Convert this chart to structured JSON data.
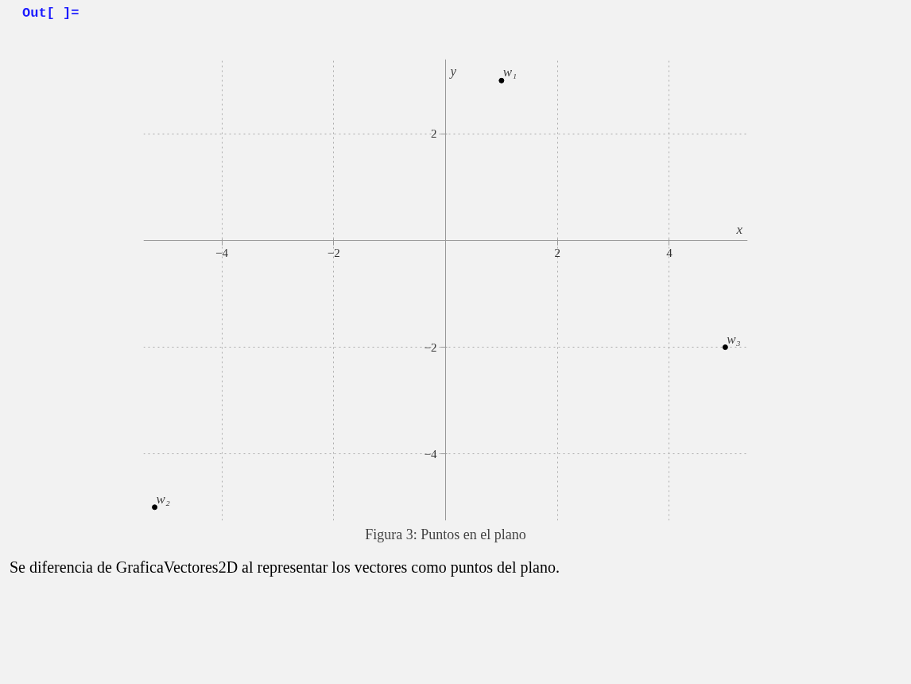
{
  "chart_data": {
    "type": "scatter",
    "title": "Figura 3: Puntos en el plano",
    "xlabel": "x",
    "ylabel": "y",
    "x": [
      1,
      -5.2,
      5
    ],
    "series": [
      {
        "color": "#000000",
        "values": [
          3,
          -5,
          -2
        ]
      }
    ],
    "xlim": [
      -5.4,
      5.4
    ],
    "ylim": [
      -5.25,
      3.4
    ],
    "xticks": [
      -4,
      -2,
      2,
      4
    ],
    "yticks": [
      -4,
      -2,
      2
    ],
    "grid": true,
    "marker": "circle",
    "annotations": [
      "Out[ ]=",
      {
        "text": "w₁",
        "x": 1,
        "y": 3
      },
      {
        "text": "w₂",
        "x": -5.2,
        "y": -5
      },
      {
        "text": "w₃",
        "x": 5,
        "y": -2
      },
      "Se diferencia de GraficaVectores2D al representar los vectores como puntos del plano."
    ]
  }
}
